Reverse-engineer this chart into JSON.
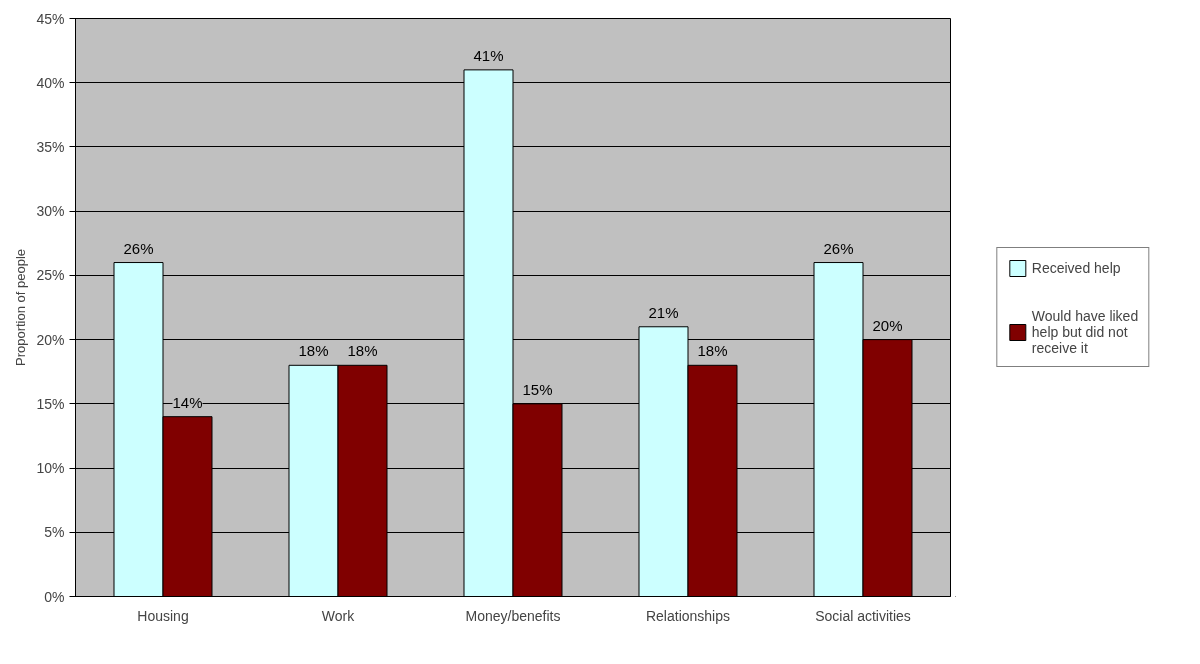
{
  "chart_data": {
    "type": "bar",
    "ylabel": "Proportion of people",
    "categories": [
      "Housing",
      "Work",
      "Money/benefits",
      "Relationships",
      "Social activities"
    ],
    "series": [
      {
        "name": "Received help",
        "color": "#ccffff",
        "values": [
          26,
          18,
          41,
          21,
          26
        ],
        "value_labels": [
          "26%",
          "18%",
          "41%",
          "21%",
          "26%"
        ]
      },
      {
        "name": "Would have liked help but did not receive it",
        "color": "#800000",
        "values": [
          14,
          18,
          15,
          18,
          20
        ],
        "value_labels": [
          "14%",
          "18%",
          "15%",
          "18%",
          "20%"
        ]
      }
    ],
    "ylim": [
      0,
      45
    ],
    "yticks": [
      {
        "value": 0,
        "label": "0%"
      },
      {
        "value": 5,
        "label": "5%"
      },
      {
        "value": 10,
        "label": "10%"
      },
      {
        "value": 15,
        "label": "15%"
      },
      {
        "value": 20,
        "label": "20%"
      },
      {
        "value": 25,
        "label": "25%"
      },
      {
        "value": 30,
        "label": "30%"
      },
      {
        "value": 35,
        "label": "35%"
      },
      {
        "value": 40,
        "label": "40%"
      },
      {
        "value": 45,
        "label": "45%"
      }
    ],
    "grid": "y",
    "legend": "right"
  }
}
